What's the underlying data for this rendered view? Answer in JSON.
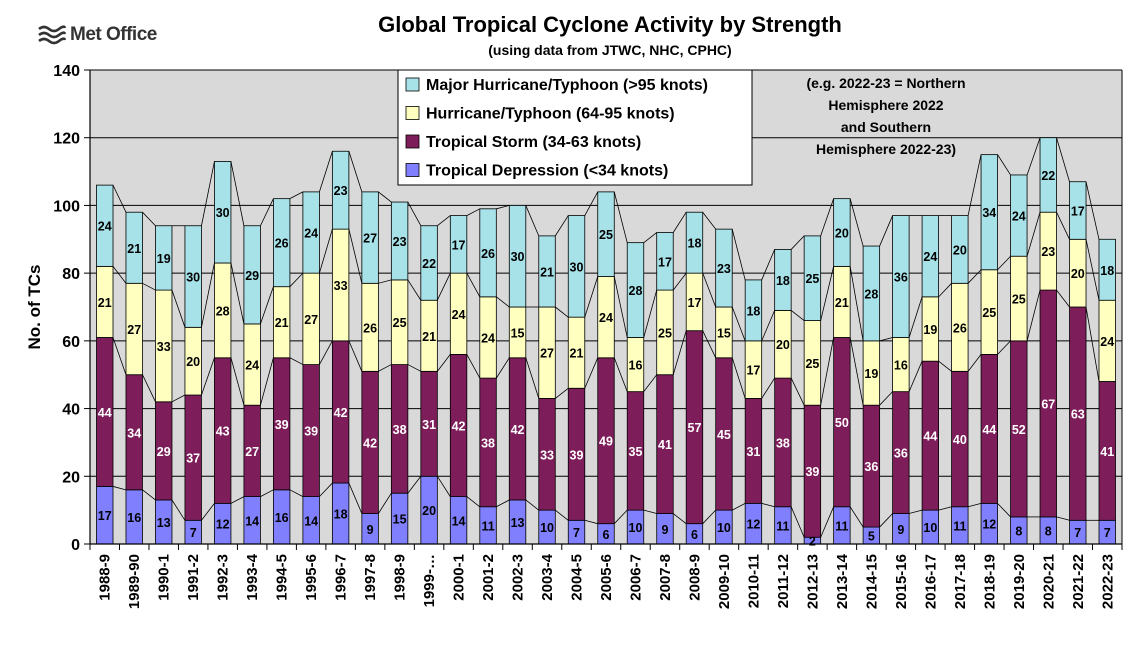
{
  "logo": {
    "text": "Met Office"
  },
  "chart_data": {
    "type": "bar",
    "stacked": true,
    "title": "Global Tropical Cyclone Activity by Strength",
    "subtitle": "(using data from JTWC, NHC, CPHC)",
    "ylabel": "No. of TCs",
    "xlabel": "",
    "ylim": [
      0,
      140
    ],
    "yticks": [
      0,
      20,
      40,
      60,
      80,
      100,
      120,
      140
    ],
    "grid": true,
    "legend_position": "top-center",
    "annotation": [
      "(e.g. 2022-23 = Northern",
      "Hemisphere 2022",
      "and Southern",
      "Hemisphere 2022-23)"
    ],
    "categories": [
      "1988-9",
      "1989-90",
      "1990-1",
      "1991-2",
      "1992-3",
      "1993-4",
      "1994-5",
      "1995-6",
      "1996-7",
      "1997-8",
      "1998-9",
      "1999-…",
      "2000-1",
      "2001-2",
      "2002-3",
      "2003-4",
      "2004-5",
      "2005-6",
      "2006-7",
      "2007-8",
      "2008-9",
      "2009-10",
      "2010-11",
      "2011-12",
      "2012-13",
      "2013-14",
      "2014-15",
      "2015-16",
      "2016-17",
      "2017-18",
      "2018-19",
      "2019-20",
      "2020-21",
      "2021-22",
      "2022-23"
    ],
    "series": [
      {
        "name": "Tropical Depression (<34 knots)",
        "color": "#8080ff",
        "values": [
          17,
          16,
          13,
          7,
          12,
          14,
          16,
          14,
          18,
          9,
          15,
          20,
          14,
          11,
          13,
          10,
          7,
          6,
          10,
          9,
          6,
          10,
          12,
          11,
          2,
          11,
          5,
          9,
          10,
          11,
          12,
          8,
          8,
          7,
          7
        ]
      },
      {
        "name": "Tropical Storm (34-63 knots)",
        "color": "#7d1e5a",
        "values": [
          44,
          34,
          29,
          37,
          43,
          27,
          39,
          39,
          42,
          42,
          38,
          31,
          42,
          38,
          42,
          33,
          39,
          49,
          35,
          41,
          57,
          45,
          31,
          38,
          39,
          50,
          36,
          36,
          44,
          40,
          44,
          52,
          67,
          63,
          41
        ]
      },
      {
        "name": "Hurricane/Typhoon (64-95 knots)",
        "color": "#ffffc0",
        "values": [
          21,
          27,
          33,
          20,
          28,
          24,
          21,
          27,
          33,
          26,
          25,
          21,
          24,
          24,
          15,
          27,
          21,
          24,
          16,
          25,
          17,
          15,
          17,
          20,
          25,
          21,
          19,
          16,
          19,
          26,
          25,
          25,
          23,
          20,
          24
        ]
      },
      {
        "name": "Major Hurricane/Typhoon (>95 knots)",
        "color": "#a6e2e8",
        "values": [
          24,
          21,
          19,
          30,
          30,
          29,
          26,
          24,
          23,
          27,
          23,
          22,
          17,
          26,
          30,
          21,
          30,
          25,
          28,
          17,
          18,
          23,
          18,
          18,
          25,
          20,
          28,
          36,
          24,
          20,
          34,
          24,
          22,
          17,
          18
        ]
      }
    ]
  }
}
